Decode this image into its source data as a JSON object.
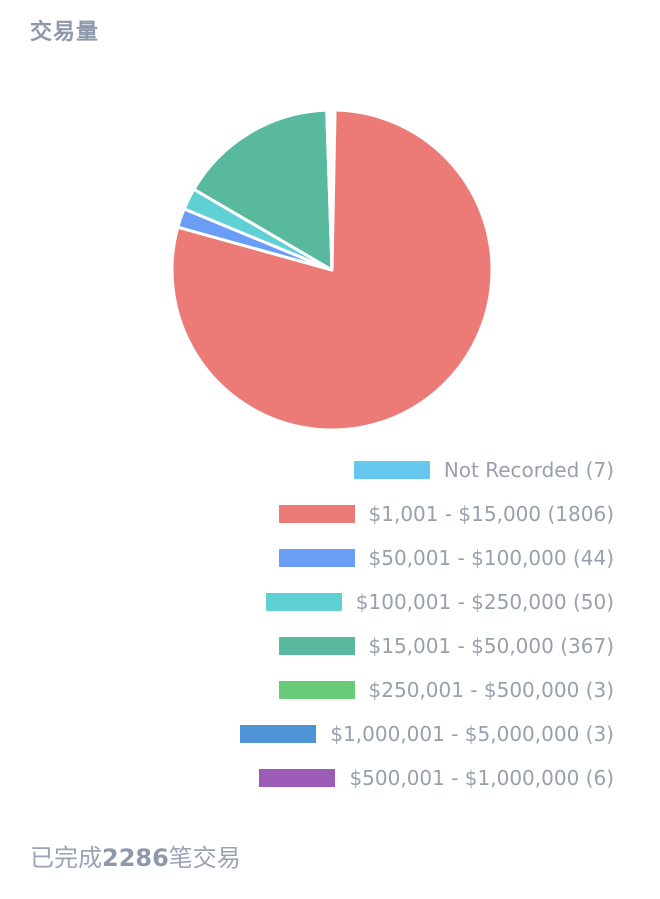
{
  "header": {
    "title": "交易量"
  },
  "chart_data": {
    "type": "pie",
    "title": "",
    "slices": [
      {
        "label": "Not Recorded",
        "value": 7,
        "color": "#65c8ee"
      },
      {
        "label": "$1,001 - $15,000",
        "value": 1806,
        "color": "#ec7a76"
      },
      {
        "label": "$50,001 - $100,000",
        "value": 44,
        "color": "#6a9ef6"
      },
      {
        "label": "$100,001 - $250,000",
        "value": 50,
        "color": "#5fd1d4"
      },
      {
        "label": "$15,001 - $50,000",
        "value": 367,
        "color": "#58b99f"
      },
      {
        "label": "$250,001 - $500,000",
        "value": 3,
        "color": "#67cb78"
      },
      {
        "label": "$1,000,001 - $5,000,000",
        "value": 3,
        "color": "#4f94d6"
      },
      {
        "label": "$500,001 - $1,000,000",
        "value": 6,
        "color": "#9b5db6"
      }
    ],
    "legend_labels": [
      "Not Recorded (7)",
      "$1,001 - $15,000 (1806)",
      "$50,001 - $100,000 (44)",
      "$100,001 - $250,000 (50)",
      "$15,001 - $50,000 (367)",
      "$250,001 - $500,000 (3)",
      "$1,000,001 - $5,000,000 (3)",
      "$500,001 - $1,000,000 (6)"
    ],
    "legend_position": "bottom-right"
  },
  "footer": {
    "prefix": "已完成",
    "count": "2286",
    "suffix": "笔交易"
  }
}
